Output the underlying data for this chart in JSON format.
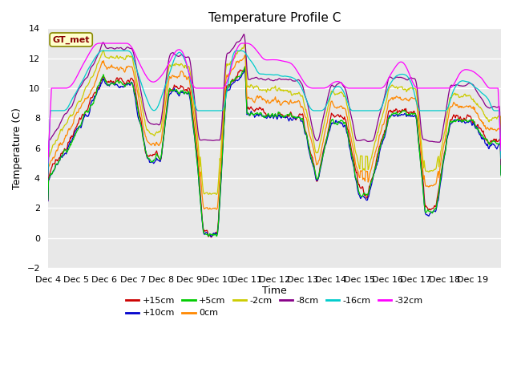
{
  "title": "Temperature Profile C",
  "xlabel": "Time",
  "ylabel": "Temperature (C)",
  "ylim": [
    -2,
    14
  ],
  "yticks": [
    -2,
    0,
    2,
    4,
    6,
    8,
    10,
    12,
    14
  ],
  "x_labels": [
    "Dec 4",
    "Dec 5",
    "Dec 6",
    "Dec 7",
    "Dec 8",
    "Dec 9",
    "Dec 10",
    "Dec 11",
    "Dec 12",
    "Dec 13",
    "Dec 14",
    "Dec 15",
    "Dec 16",
    "Dec 17",
    "Dec 18",
    "Dec 19"
  ],
  "series": [
    {
      "label": "+15cm",
      "color": "#cc0000"
    },
    {
      "label": "+10cm",
      "color": "#0000cc"
    },
    {
      "label": "+5cm",
      "color": "#00cc00"
    },
    {
      "label": "0cm",
      "color": "#ff8800"
    },
    {
      "label": "-2cm",
      "color": "#cccc00"
    },
    {
      "label": "-8cm",
      "color": "#880088"
    },
    {
      "label": "-16cm",
      "color": "#00cccc"
    },
    {
      "label": "-32cm",
      "color": "#ff00ff"
    }
  ],
  "background_color": "#e8e8e8",
  "legend_box_color": "#ffffcc",
  "legend_box_edge": "#888800",
  "legend_text_color": "#880000",
  "grid_color": "#ffffff",
  "title_fontsize": 11,
  "axis_fontsize": 9,
  "tick_fontsize": 8
}
